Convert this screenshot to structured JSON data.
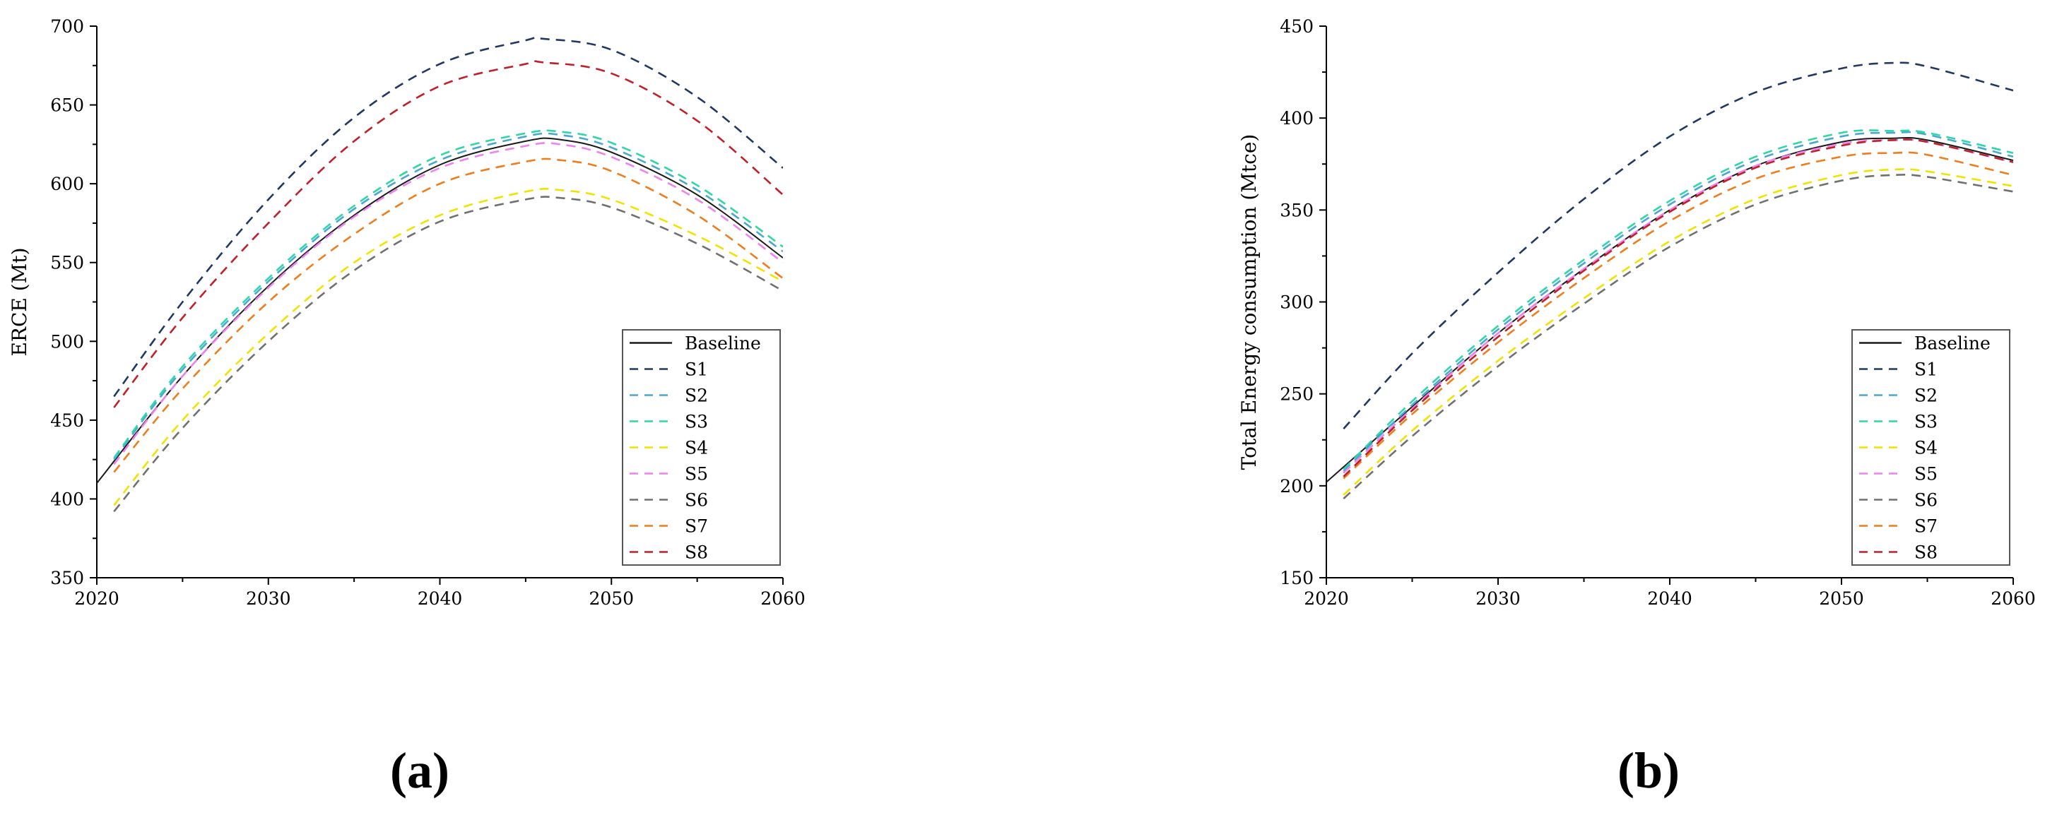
{
  "colors": {
    "Baseline": "#1a1a1a",
    "S1": "#1f3864",
    "S2": "#4aa8d0",
    "S3": "#2fd6a8",
    "S4": "#f2e200",
    "S5": "#ee82ee",
    "S6": "#707070",
    "S7": "#ee7d1e",
    "S8": "#c0202a"
  },
  "chart_data": [
    {
      "type": "line",
      "panel_label": "(a)",
      "ylabel": "ERCE (Mt)",
      "xlabel": "",
      "xlim": [
        2020,
        2060
      ],
      "ylim": [
        350,
        700
      ],
      "xticks": [
        "2020",
        "2030",
        "2040",
        "2050",
        "2060"
      ],
      "yticks": [
        "350",
        "400",
        "450",
        "500",
        "550",
        "600",
        "650",
        "700"
      ],
      "legend": [
        "Baseline",
        "S1",
        "S2",
        "S3",
        "S4",
        "S5",
        "S6",
        "S7",
        "S8"
      ],
      "legend_position": "bottom-right",
      "x": [
        2020,
        2025,
        2030,
        2035,
        2040,
        2045,
        2047,
        2050,
        2055,
        2060
      ],
      "series": [
        {
          "name": "Baseline",
          "style": "solid",
          "x": [
            2020,
            2025,
            2030,
            2035,
            2040,
            2045,
            2047,
            2050,
            2055,
            2060
          ],
          "values": [
            410,
            478,
            535,
            580,
            612,
            627,
            628,
            620,
            593,
            553
          ]
        },
        {
          "name": "S1",
          "style": "dashed",
          "x": [
            2021,
            2025,
            2030,
            2035,
            2040,
            2045,
            2046,
            2050,
            2055,
            2060
          ],
          "values": [
            465,
            525,
            590,
            642,
            676,
            691,
            692,
            685,
            655,
            610
          ]
        },
        {
          "name": "S2",
          "style": "dashed",
          "x": [
            2021,
            2025,
            2030,
            2035,
            2040,
            2045,
            2047,
            2050,
            2055,
            2060
          ],
          "values": [
            425,
            482,
            538,
            584,
            615,
            630,
            631,
            623,
            596,
            557
          ]
        },
        {
          "name": "S3",
          "style": "dashed",
          "x": [
            2021,
            2025,
            2030,
            2035,
            2040,
            2045,
            2047,
            2050,
            2055,
            2060
          ],
          "values": [
            426,
            484,
            540,
            586,
            618,
            632,
            633,
            626,
            599,
            560
          ]
        },
        {
          "name": "S4",
          "style": "dashed",
          "x": [
            2021,
            2025,
            2030,
            2035,
            2040,
            2045,
            2047,
            2050,
            2055,
            2060
          ],
          "values": [
            396,
            450,
            505,
            550,
            580,
            595,
            596,
            590,
            567,
            538
          ]
        },
        {
          "name": "S5",
          "style": "dashed",
          "x": [
            2021,
            2025,
            2030,
            2035,
            2040,
            2045,
            2047,
            2050,
            2055,
            2060
          ],
          "values": [
            422,
            478,
            534,
            579,
            610,
            624,
            625,
            617,
            590,
            550
          ]
        },
        {
          "name": "S6",
          "style": "dashed",
          "x": [
            2021,
            2025,
            2030,
            2035,
            2040,
            2045,
            2047,
            2050,
            2055,
            2060
          ],
          "values": [
            392,
            445,
            500,
            545,
            576,
            590,
            591,
            585,
            562,
            532
          ]
        },
        {
          "name": "S7",
          "style": "dashed",
          "x": [
            2021,
            2025,
            2030,
            2035,
            2040,
            2045,
            2047,
            2050,
            2055,
            2060
          ],
          "values": [
            417,
            470,
            525,
            568,
            600,
            614,
            615,
            608,
            580,
            540
          ]
        },
        {
          "name": "S8",
          "style": "dashed",
          "x": [
            2021,
            2025,
            2030,
            2035,
            2040,
            2045,
            2046,
            2050,
            2055,
            2060
          ],
          "values": [
            458,
            515,
            575,
            627,
            662,
            676,
            677,
            670,
            640,
            593
          ]
        }
      ]
    },
    {
      "type": "line",
      "panel_label": "(b)",
      "ylabel": "Total Energy consumption (Mtce)",
      "xlabel": "",
      "xlim": [
        2020,
        2060
      ],
      "ylim": [
        150,
        450
      ],
      "xticks": [
        "2020",
        "2030",
        "2040",
        "2050",
        "2060"
      ],
      "yticks": [
        "150",
        "200",
        "250",
        "300",
        "350",
        "400",
        "450"
      ],
      "legend": [
        "Baseline",
        "S1",
        "S2",
        "S3",
        "S4",
        "S5",
        "S6",
        "S7",
        "S8"
      ],
      "legend_position": "bottom-right",
      "series": [
        {
          "name": "Baseline",
          "style": "solid",
          "x": [
            2020,
            2025,
            2030,
            2035,
            2040,
            2045,
            2050,
            2053,
            2055,
            2060
          ],
          "values": [
            202,
            243,
            283,
            318,
            350,
            374,
            387,
            389,
            388,
            377
          ]
        },
        {
          "name": "S1",
          "style": "dashed",
          "x": [
            2021,
            2025,
            2030,
            2035,
            2040,
            2045,
            2050,
            2053,
            2055,
            2060
          ],
          "values": [
            231,
            272,
            316,
            356,
            390,
            414,
            427,
            430,
            428,
            415
          ]
        },
        {
          "name": "S2",
          "style": "dashed",
          "x": [
            2021,
            2025,
            2030,
            2035,
            2040,
            2045,
            2050,
            2053,
            2055,
            2060
          ],
          "values": [
            208,
            244,
            285,
            321,
            353,
            377,
            390,
            392,
            391,
            379
          ]
        },
        {
          "name": "S3",
          "style": "dashed",
          "x": [
            2021,
            2025,
            2030,
            2035,
            2040,
            2045,
            2050,
            2053,
            2055,
            2060
          ],
          "values": [
            209,
            246,
            287,
            323,
            355,
            379,
            392,
            393,
            392,
            381
          ]
        },
        {
          "name": "S4",
          "style": "dashed",
          "x": [
            2021,
            2025,
            2030,
            2035,
            2040,
            2045,
            2050,
            2053,
            2055,
            2060
          ],
          "values": [
            195,
            230,
            268,
            302,
            333,
            356,
            369,
            372,
            371,
            363
          ]
        },
        {
          "name": "S5",
          "style": "dashed",
          "x": [
            2021,
            2025,
            2030,
            2035,
            2040,
            2045,
            2050,
            2053,
            2055,
            2060
          ],
          "values": [
            207,
            242,
            283,
            318,
            350,
            374,
            386,
            388,
            387,
            376
          ]
        },
        {
          "name": "S6",
          "style": "dashed",
          "x": [
            2021,
            2025,
            2030,
            2035,
            2040,
            2045,
            2050,
            2053,
            2055,
            2060
          ],
          "values": [
            193,
            227,
            265,
            299,
            330,
            353,
            366,
            369,
            368,
            360
          ]
        },
        {
          "name": "S7",
          "style": "dashed",
          "x": [
            2021,
            2025,
            2030,
            2035,
            2040,
            2045,
            2050,
            2053,
            2055,
            2060
          ],
          "values": [
            204,
            239,
            278,
            313,
            344,
            367,
            379,
            381,
            380,
            369
          ]
        },
        {
          "name": "S8",
          "style": "dashed",
          "x": [
            2021,
            2025,
            2030,
            2035,
            2040,
            2045,
            2050,
            2053,
            2055,
            2060
          ],
          "values": [
            205,
            241,
            281,
            317,
            349,
            373,
            385,
            388,
            387,
            376
          ]
        }
      ]
    }
  ]
}
